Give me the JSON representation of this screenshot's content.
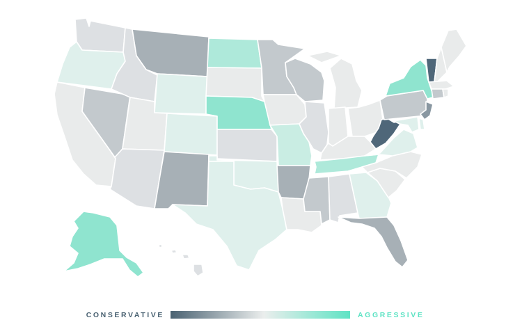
{
  "legend": {
    "low_label": "CONSERVATIVE",
    "high_label": "AGGRESSIVE",
    "low_color": "#4a6272",
    "mid_color": "#ebeeed",
    "high_color": "#5ee3c4"
  },
  "scale": {
    "dark": "#4f6779",
    "slate": "#8997a1",
    "gray_dark": "#a7b0b6",
    "gray": "#c3c9cd",
    "gray_light": "#dde0e3",
    "neutral": "#e9ebeb",
    "mint_pale": "#dff0ec",
    "mint_light": "#c9ede3",
    "mint": "#aee9da",
    "teal": "#8fe4cf"
  },
  "states": [
    {
      "code": "WA",
      "level": "gray_light"
    },
    {
      "code": "OR",
      "level": "mint_pale"
    },
    {
      "code": "CA",
      "level": "neutral"
    },
    {
      "code": "NV",
      "level": "gray"
    },
    {
      "code": "ID",
      "level": "gray_light"
    },
    {
      "code": "MT",
      "level": "gray_dark"
    },
    {
      "code": "WY",
      "level": "mint_pale"
    },
    {
      "code": "UT",
      "level": "neutral"
    },
    {
      "code": "AZ",
      "level": "gray_light"
    },
    {
      "code": "CO",
      "level": "mint_pale"
    },
    {
      "code": "NM",
      "level": "gray_dark"
    },
    {
      "code": "ND",
      "level": "mint"
    },
    {
      "code": "SD",
      "level": "neutral"
    },
    {
      "code": "NE",
      "level": "teal"
    },
    {
      "code": "KS",
      "level": "gray_light"
    },
    {
      "code": "OK",
      "level": "mint_pale"
    },
    {
      "code": "TX",
      "level": "mint_pale"
    },
    {
      "code": "MN",
      "level": "gray"
    },
    {
      "code": "IA",
      "level": "neutral"
    },
    {
      "code": "MO",
      "level": "mint_light"
    },
    {
      "code": "AR",
      "level": "gray_dark"
    },
    {
      "code": "LA",
      "level": "neutral"
    },
    {
      "code": "WI",
      "level": "gray"
    },
    {
      "code": "IL",
      "level": "gray_light"
    },
    {
      "code": "MI",
      "level": "neutral"
    },
    {
      "code": "IN",
      "level": "neutral"
    },
    {
      "code": "OH",
      "level": "neutral"
    },
    {
      "code": "KY",
      "level": "neutral"
    },
    {
      "code": "TN",
      "level": "mint"
    },
    {
      "code": "MS",
      "level": "gray"
    },
    {
      "code": "AL",
      "level": "gray_light"
    },
    {
      "code": "GA",
      "level": "mint_pale"
    },
    {
      "code": "FL",
      "level": "gray_dark"
    },
    {
      "code": "SC",
      "level": "neutral"
    },
    {
      "code": "NC",
      "level": "neutral"
    },
    {
      "code": "VA",
      "level": "mint_pale"
    },
    {
      "code": "WV",
      "level": "dark"
    },
    {
      "code": "PA",
      "level": "gray"
    },
    {
      "code": "NY",
      "level": "teal"
    },
    {
      "code": "VT",
      "level": "dark"
    },
    {
      "code": "NH",
      "level": "neutral"
    },
    {
      "code": "ME",
      "level": "neutral"
    },
    {
      "code": "MA",
      "level": "neutral"
    },
    {
      "code": "CT",
      "level": "gray"
    },
    {
      "code": "RI",
      "level": "neutral"
    },
    {
      "code": "NJ",
      "level": "slate"
    },
    {
      "code": "DE",
      "level": "mint_pale"
    },
    {
      "code": "MD",
      "level": "mint_pale"
    },
    {
      "code": "AK",
      "level": "teal"
    },
    {
      "code": "HI",
      "level": "gray_light"
    }
  ]
}
